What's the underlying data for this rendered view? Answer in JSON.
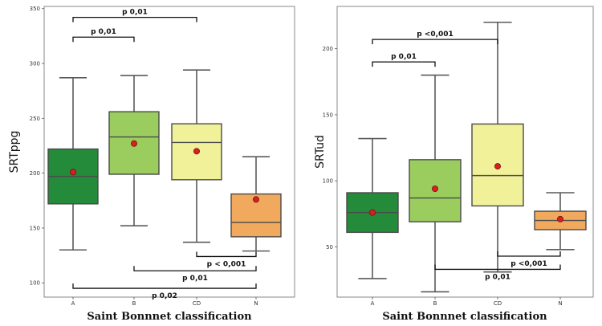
{
  "chart_data": [
    {
      "type": "box",
      "xlabel": "Saint Bonnnet classification",
      "ylabel": "SRTppg",
      "ylim": [
        87,
        352
      ],
      "yticks": [
        100,
        150,
        200,
        250,
        300,
        350
      ],
      "categories": [
        "A",
        "B",
        "CD",
        "N"
      ],
      "boxes": [
        {
          "category": "A",
          "whislo": 130,
          "q1": 172,
          "median": 197,
          "q3": 222,
          "whishi": 287,
          "mean": 201,
          "color": "#238b3a"
        },
        {
          "category": "B",
          "whislo": 152,
          "q1": 199,
          "median": 233,
          "q3": 256,
          "whishi": 289,
          "mean": 227,
          "color": "#9acd5e"
        },
        {
          "category": "CD",
          "whislo": 137,
          "q1": 194,
          "median": 228,
          "q3": 245,
          "whishi": 294,
          "mean": 220,
          "color": "#f1f19a"
        },
        {
          "category": "N",
          "whislo": 129,
          "q1": 142,
          "median": 155,
          "q3": 181,
          "whishi": 215,
          "mean": 176,
          "color": "#f0a95d"
        }
      ],
      "annotations": [
        {
          "text": "p 0,01",
          "from": "A",
          "to": "CD",
          "y": 342,
          "side": "top"
        },
        {
          "text": "p 0,01",
          "from": "A",
          "to": "B",
          "y": 324,
          "side": "top"
        },
        {
          "text": "p < 0,001",
          "from": "CD",
          "to": "N",
          "y": 124,
          "side": "bottom"
        },
        {
          "text": "p 0,01",
          "from": "B",
          "to": "N",
          "y": 111,
          "side": "bottom"
        },
        {
          "text": "p 0,02",
          "from": "A",
          "to": "N",
          "y": 95,
          "side": "bottom"
        }
      ]
    },
    {
      "type": "box",
      "xlabel": "Saint Bonnnet classification",
      "ylabel": "SRTud",
      "ylim": [
        12,
        232
      ],
      "yticks": [
        50,
        100,
        150,
        200
      ],
      "categories": [
        "A",
        "B",
        "CD",
        "N"
      ],
      "boxes": [
        {
          "category": "A",
          "whislo": 26,
          "q1": 61,
          "median": 76,
          "q3": 91,
          "whishi": 132,
          "mean": 76,
          "color": "#238b3a"
        },
        {
          "category": "B",
          "whislo": 16,
          "q1": 69,
          "median": 87,
          "q3": 116,
          "whishi": 180,
          "mean": 94,
          "color": "#9acd5e"
        },
        {
          "category": "CD",
          "whislo": 31,
          "q1": 81,
          "median": 104,
          "q3": 143,
          "whishi": 220,
          "mean": 111,
          "color": "#f1f19a"
        },
        {
          "category": "N",
          "whislo": 48,
          "q1": 63,
          "median": 70,
          "q3": 77,
          "whishi": 91,
          "mean": 71,
          "color": "#f0a95d"
        }
      ],
      "annotations": [
        {
          "text": "p <0,001",
          "from": "A",
          "to": "CD",
          "y": 207,
          "side": "top"
        },
        {
          "text": "p 0,01",
          "from": "A",
          "to": "B",
          "y": 190,
          "side": "top"
        },
        {
          "text": "p <0,001",
          "from": "CD",
          "to": "N",
          "y": 43,
          "side": "bottom"
        },
        {
          "text": "p 0,01",
          "from": "B",
          "to": "N",
          "y": 33,
          "side": "bottom"
        }
      ]
    }
  ]
}
